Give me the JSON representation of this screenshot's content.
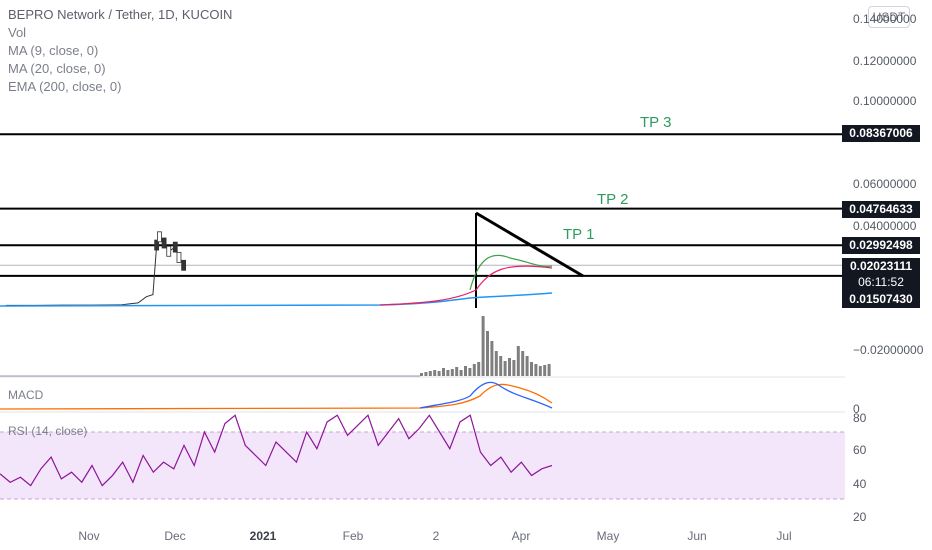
{
  "legend": {
    "title": "BEPRO Network / Tether, 1D, KUCOIN",
    "vol": "Vol",
    "ma9": "MA (9, close, 0)",
    "ma20": "MA (20, close, 0)",
    "ema200": "EMA (200, close, 0)"
  },
  "currency_button": "USDT",
  "price_axis": {
    "ticks": [
      "0.14000000",
      "0.12000000",
      "0.10000000",
      "0.06000000",
      "0.04000000",
      "−0.02000000"
    ],
    "top_partial": "0.1",
    "lower_partial": "0.0"
  },
  "price_tags": {
    "tp3": "0.08367006",
    "tp2": "0.04764633",
    "tp1": "0.02992498",
    "current": "0.02023111",
    "countdown": "06:11:52",
    "support": "0.01507430"
  },
  "targets": {
    "tp3": "TP 3",
    "tp2": "TP 2",
    "tp1": "TP 1"
  },
  "macd": {
    "label": "MACD",
    "axis_value": "0"
  },
  "rsi": {
    "label": "RSI (14, close)",
    "ticks": [
      "80",
      "60",
      "40",
      "20"
    ]
  },
  "time_axis": {
    "labels": [
      "Nov",
      "Dec",
      "2021",
      "Feb",
      "2",
      "Apr",
      "May",
      "Jun",
      "Jul"
    ]
  },
  "colors": {
    "rsi_line": "#8e1599",
    "rsi_band": "#f3e6fb",
    "macd_line": "#2962ff",
    "signal_line": "#ff6d00",
    "ema200": "#2196f3",
    "ma9": "#43a047",
    "ma20": "#e91e63",
    "tp_text": "#2e9a5e"
  },
  "chart_data": {
    "type": "line",
    "title": "BEPRO Network / Tether, 1D, KUCOIN",
    "horizontal_levels": [
      0.08367006,
      0.04764633,
      0.02992498,
      0.0150743
    ],
    "last_price": 0.02023111,
    "price_series": [
      {
        "date": "2020-10-01",
        "close": 0.0008
      },
      {
        "date": "2020-11-01",
        "close": 0.0008
      },
      {
        "date": "2020-12-01",
        "close": 0.0009
      },
      {
        "date": "2021-01-01",
        "close": 0.0009
      },
      {
        "date": "2021-02-01",
        "close": 0.001
      },
      {
        "date": "2021-02-20",
        "close": 0.002
      },
      {
        "date": "2021-03-01",
        "close": 0.005
      },
      {
        "date": "2021-03-08",
        "close": 0.006
      },
      {
        "date": "2021-03-12",
        "close": 0.03
      },
      {
        "date": "2021-03-15",
        "close": 0.034
      },
      {
        "date": "2021-03-20",
        "close": 0.031
      },
      {
        "date": "2021-03-25",
        "close": 0.027
      },
      {
        "date": "2021-04-01",
        "close": 0.029
      },
      {
        "date": "2021-04-05",
        "close": 0.024
      },
      {
        "date": "2021-04-10",
        "close": 0.0202
      }
    ],
    "rsi": {
      "ylim": [
        20,
        80
      ],
      "band": [
        30,
        70
      ],
      "values": [
        45,
        40,
        43,
        38,
        48,
        55,
        42,
        46,
        40,
        50,
        38,
        44,
        52,
        40,
        56,
        46,
        52,
        48,
        62,
        50,
        70,
        58,
        75,
        80,
        62,
        56,
        50,
        64,
        58,
        52,
        70,
        60,
        76,
        80,
        68,
        74,
        80,
        62,
        70,
        78,
        66,
        72,
        80,
        70,
        60,
        76,
        80,
        58,
        50,
        55,
        46,
        52,
        44,
        48,
        50
      ]
    }
  }
}
